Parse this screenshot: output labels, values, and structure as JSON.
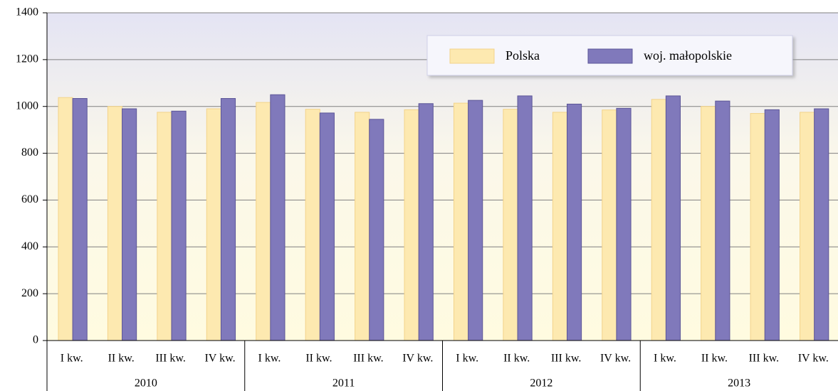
{
  "chart_data": {
    "type": "bar",
    "categories": [
      "I kw.",
      "II kw.",
      "III kw.",
      "IV kw.",
      "I kw.",
      "II kw.",
      "III kw.",
      "IV kw.",
      "I kw.",
      "II kw.",
      "III kw.",
      "IV kw.",
      "I kw.",
      "II kw.",
      "III kw.",
      "IV kw."
    ],
    "groups": [
      "2010",
      "2011",
      "2012",
      "2013"
    ],
    "series": [
      {
        "name": "Polska",
        "color": "#fde9b0",
        "values": [
          1038,
          1000,
          975,
          990,
          1017,
          988,
          975,
          986,
          1014,
          988,
          975,
          985,
          1030,
          1000,
          970,
          975
        ]
      },
      {
        "name": "woj. małopolskie",
        "color": "#8079bb",
        "values": [
          1034,
          990,
          980,
          1034,
          1050,
          972,
          945,
          1012,
          1026,
          1045,
          1010,
          992,
          1045,
          1023,
          986,
          990
        ]
      }
    ],
    "ylim": [
      0,
      1400
    ],
    "yticks": [
      0,
      200,
      400,
      600,
      800,
      1000,
      1200,
      1400
    ],
    "grid": true,
    "legend_position": "top-right"
  }
}
